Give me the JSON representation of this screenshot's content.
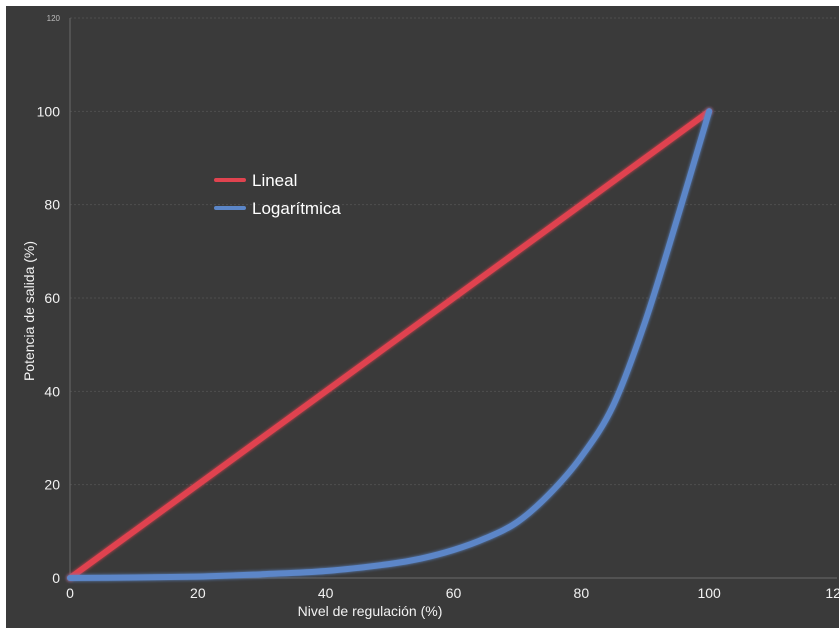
{
  "chart_data": {
    "type": "line",
    "title": "",
    "xlabel": "Nivel de regulación (%)",
    "ylabel": "Potencia de salida (%)",
    "xlim": [
      0,
      120
    ],
    "ylim": [
      0,
      120
    ],
    "x_ticks": [
      "0",
      "20",
      "40",
      "60",
      "80",
      "100",
      "120"
    ],
    "y_ticks": [
      "0",
      "20",
      "40",
      "60",
      "80",
      "100",
      "120"
    ],
    "grid": true,
    "legend_position": "upper-left",
    "background_color": "#3a3a3a",
    "series": [
      {
        "name": "Lineal",
        "color": "#e0434f",
        "points": [
          [
            0,
            0
          ],
          [
            100,
            100
          ]
        ]
      },
      {
        "name": "Logarítmica",
        "color": "#5b86c8",
        "points": [
          [
            0,
            0
          ],
          [
            10,
            0.1
          ],
          [
            20,
            0.3
          ],
          [
            30,
            0.8
          ],
          [
            40,
            1.5
          ],
          [
            50,
            3
          ],
          [
            55,
            4.2
          ],
          [
            60,
            6
          ],
          [
            65,
            8.5
          ],
          [
            70,
            12
          ],
          [
            75,
            18
          ],
          [
            80,
            26
          ],
          [
            85,
            37
          ],
          [
            90,
            55
          ],
          [
            95,
            77
          ],
          [
            100,
            100
          ]
        ]
      }
    ]
  }
}
